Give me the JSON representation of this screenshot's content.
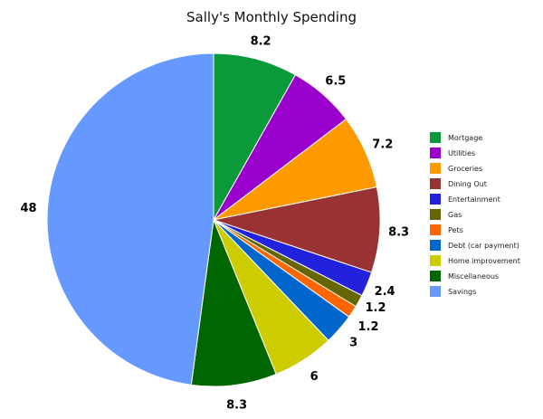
{
  "chart_data": {
    "type": "pie",
    "title": "Sally's Monthly Spending",
    "legend_position": "right",
    "slices": [
      {
        "label": "Mortgage",
        "value": 8.2,
        "value_label": "8.2",
        "color": "#0a9a3a"
      },
      {
        "label": "Utilities",
        "value": 6.5,
        "value_label": "6.5",
        "color": "#9900cc"
      },
      {
        "label": "Groceries",
        "value": 7.2,
        "value_label": "7.2",
        "color": "#ff9900"
      },
      {
        "label": "Dining Out",
        "value": 8.3,
        "value_label": "8.3",
        "color": "#993333"
      },
      {
        "label": "Entertainment",
        "value": 2.4,
        "value_label": "2.4",
        "color": "#2222dd"
      },
      {
        "label": "Gas",
        "value": 1.2,
        "value_label": "1.2",
        "color": "#666600"
      },
      {
        "label": "Pets",
        "value": 1.2,
        "value_label": "1.2",
        "color": "#ff6600"
      },
      {
        "label": "Debt (car payment)",
        "value": 3,
        "value_label": "3",
        "color": "#0066cc"
      },
      {
        "label": "Home improvement",
        "value": 6,
        "value_label": "6",
        "color": "#cccc00"
      },
      {
        "label": "Miscellaneous",
        "value": 8.3,
        "value_label": "8.3",
        "color": "#006600"
      },
      {
        "label": "Savings",
        "value": 48,
        "value_label": "48",
        "color": "#6699ff"
      }
    ]
  }
}
